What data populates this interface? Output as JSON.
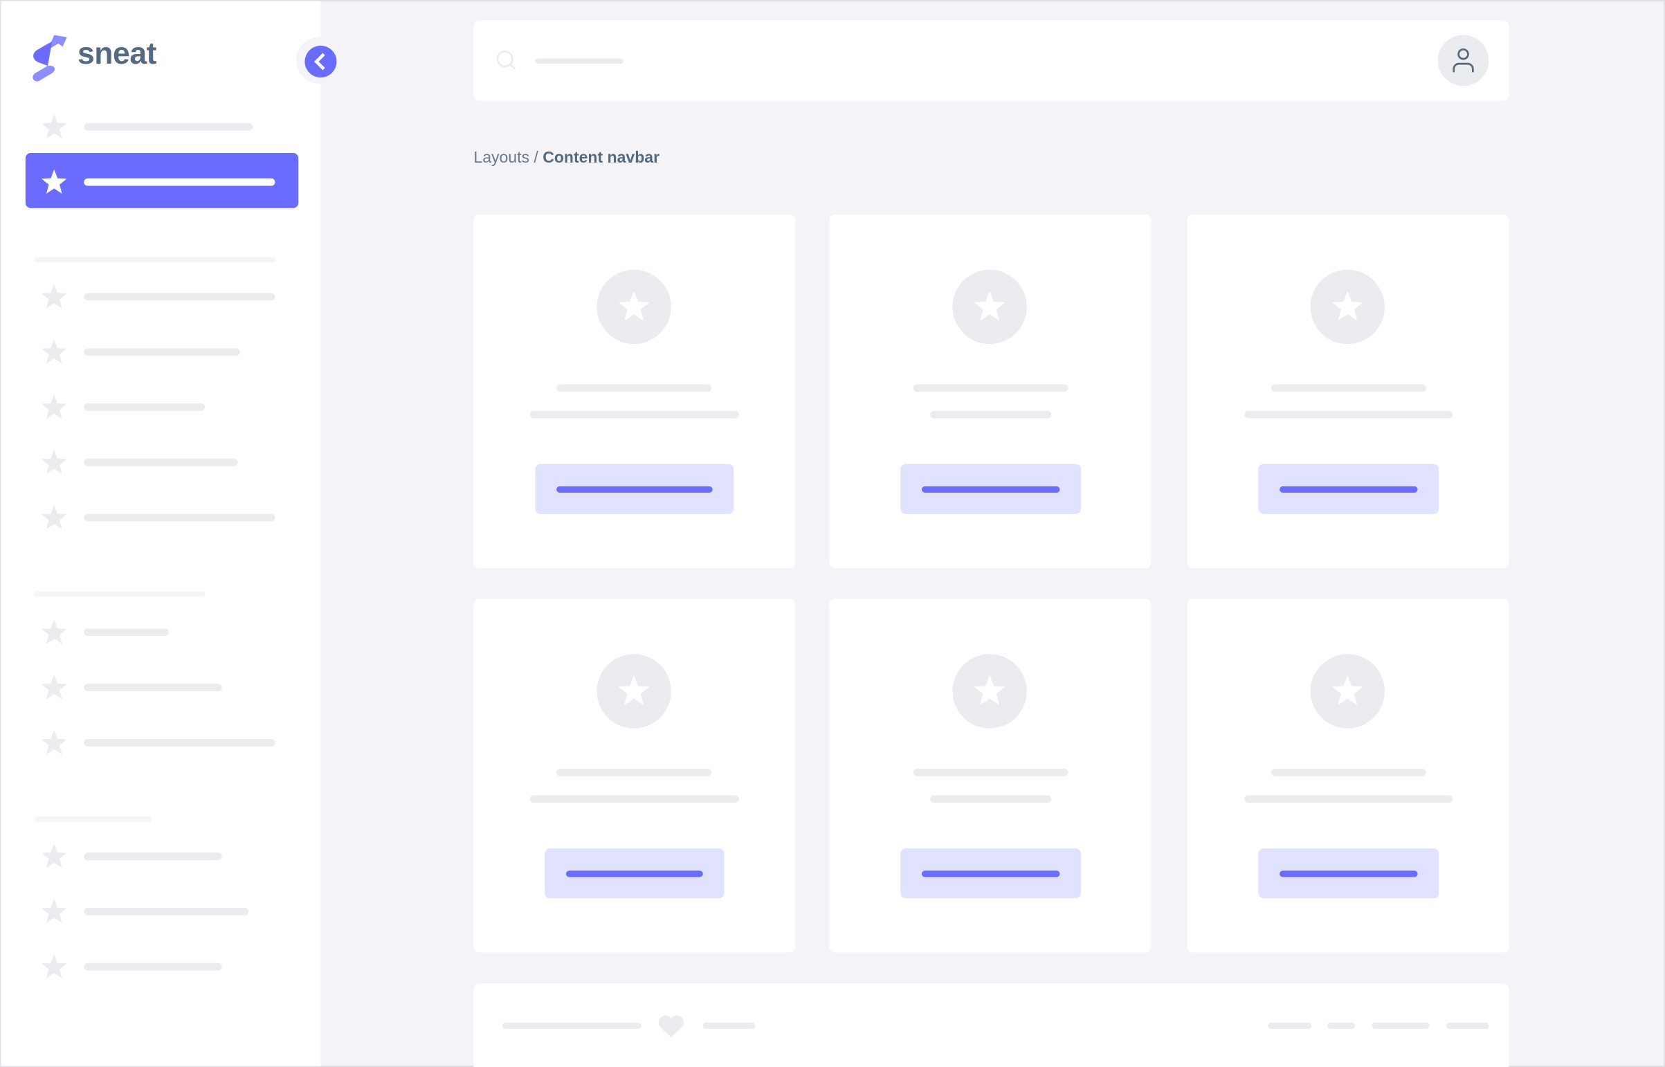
{
  "brand": {
    "name": "sneat",
    "primary_color": "#696cff",
    "text_color": "#566a7f"
  },
  "breadcrumb": {
    "parent": "Layouts",
    "separator": " / ",
    "current": "Content navbar"
  },
  "icons": {
    "sidebar": "star-icon",
    "collapse": "chevron-left-icon",
    "search": "search-icon",
    "user": "user-icon",
    "card": "star-icon",
    "footer": "heart-icon"
  }
}
